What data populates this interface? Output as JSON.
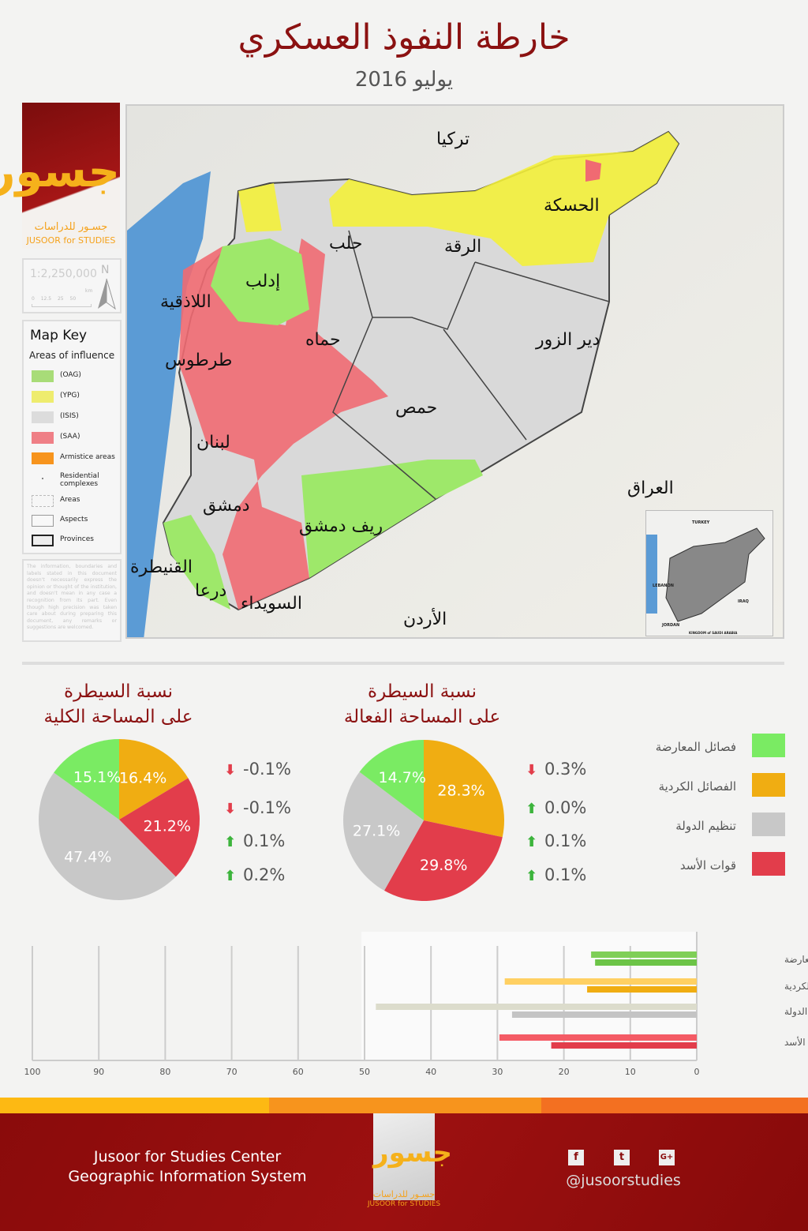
{
  "header": {
    "title": "خارطة النفوذ العسكري",
    "date": "يوليو  2016"
  },
  "logo": {
    "glyph": "جسور",
    "arabic": "جسـور للدراسات",
    "english": "JUSOOR for STUDIES"
  },
  "scale": {
    "ratio": "1:2,250,000",
    "north": "N",
    "ticks": "0 12.5 25 50",
    "unit": "km"
  },
  "map_key": {
    "title": "Map Key",
    "subtitle": "Areas of influence",
    "items": [
      {
        "label": "(OAG)",
        "color": "#a8dc78"
      },
      {
        "label": "(YPG)",
        "color": "#eeec6e"
      },
      {
        "label": "(ISIS)",
        "color": "#dcdcdc"
      },
      {
        "label": "(SAA)",
        "color": "#ef7f86"
      },
      {
        "label": "Armistice areas",
        "color": "#f7941d"
      },
      {
        "label": "Residential complexes",
        "color": ""
      },
      {
        "label": "Areas",
        "color": ""
      },
      {
        "label": "Aspects",
        "color": ""
      },
      {
        "label": "Provinces",
        "color": ""
      }
    ]
  },
  "disclaimer": "The information, boundaries and labels stated in this document doesn't necessarily express the opinion or thought of the institution, and doesn't mean in any case a recognition from its part. Even though high precision was taken care about during preparing this document, any remarks or suggestions are welcomed.",
  "map": {
    "labels": {
      "turkey": "تركيا",
      "hasakah": "الحسكة",
      "aleppo": "حلب",
      "raqqa": "الرقة",
      "idlib": "إدلب",
      "latakia": "اللاذقية",
      "hama": "حماه",
      "deir": "دير الزور",
      "tartus": "طرطوس",
      "homs": "حمص",
      "lebanon": "لبنان",
      "iraq": "العراق",
      "damascus": "دمشق",
      "rifdamascus": "ريف دمشق",
      "quneitra": "القنيطرة",
      "daraa": "درعا",
      "sweida": "السويداء",
      "jordan": "الأردن"
    },
    "inset": {
      "turkey": "TURKEY",
      "lebanon": "LEBANON",
      "iraq": "IRAQ",
      "jordan": "JORDAN",
      "saudi": "KINGDOM of SAUDI ARABIA"
    }
  },
  "colors": {
    "opposition": "#7aeb63",
    "kurdish": "#f0ad12",
    "isis": "#c8c8c8",
    "regime": "#e23d4b",
    "accent": "#8b1111"
  },
  "legend": [
    {
      "label": "فصائل المعارضة",
      "color": "#7aeb63"
    },
    {
      "label": "الفصائل الكردية",
      "color": "#f0ad12"
    },
    {
      "label": "تنظيم الدولة",
      "color": "#c8c8c8"
    },
    {
      "label": "قوات الأسد",
      "color": "#e23d4b"
    }
  ],
  "chart_data": [
    {
      "type": "pie",
      "title": "نسبة السيطرة على المساحة الكلية",
      "title_l1": "نسبة السيطرة",
      "title_l2": "على المساحة الكلية",
      "categories": [
        "الفصائل الكردية",
        "قوات الأسد",
        "تنظيم الدولة",
        "فصائل المعارضة"
      ],
      "values": [
        16.4,
        21.2,
        47.4,
        15.1
      ],
      "labels": [
        "16.4%",
        "21.2%",
        "47.4%",
        "15.1%"
      ],
      "colors": [
        "#f0ad12",
        "#e23d4b",
        "#c8c8c8",
        "#7aeb63"
      ],
      "changes": [
        {
          "value": "-0.1%",
          "dir": "down"
        },
        {
          "value": "-0.1%",
          "dir": "down"
        },
        {
          "value": "0.1%",
          "dir": "up"
        },
        {
          "value": "0.2%",
          "dir": "up"
        }
      ]
    },
    {
      "type": "pie",
      "title": "نسبة السيطرة على المساحة الفعالة",
      "title_l1": "نسبة السيطرة",
      "title_l2": "على المساحة الفعالة",
      "categories": [
        "الفصائل الكردية",
        "قوات الأسد",
        "تنظيم الدولة",
        "فصائل المعارضة"
      ],
      "values": [
        28.3,
        29.8,
        27.1,
        14.7
      ],
      "labels": [
        "28.3%",
        "29.8%",
        "27.1%",
        "14.7%"
      ],
      "colors": [
        "#f0ad12",
        "#e23d4b",
        "#c8c8c8",
        "#7aeb63"
      ],
      "changes": [
        {
          "value": "0.3%",
          "dir": "down"
        },
        {
          "value": "0.0%",
          "dir": "up"
        },
        {
          "value": "0.1%",
          "dir": "up"
        },
        {
          "value": "0.1%",
          "dir": "up"
        }
      ]
    },
    {
      "type": "bar",
      "orientation": "horizontal",
      "xlim": [
        0,
        100
      ],
      "x_reversed": true,
      "grid": true,
      "ticks": [
        "100",
        "90",
        "80",
        "70",
        "60",
        "50",
        "40",
        "30",
        "20",
        "10",
        "0"
      ],
      "categories": [
        "فصائل المعارضة",
        "الفصائل الكردية",
        "تنظيم الدولة",
        "قوات الأسد"
      ],
      "series": [
        {
          "values": [
            15.9,
            28.9,
            48.3,
            29.7
          ],
          "colors": [
            "#7fcf57",
            "#ffd062",
            "#dcdccc",
            "#f45b65"
          ]
        },
        {
          "values": [
            15.3,
            16.5,
            27.8,
            21.9
          ],
          "colors": [
            "#6cc447",
            "#f0ad12",
            "#c4c4c4",
            "#e23d4b"
          ]
        }
      ]
    }
  ],
  "footer": {
    "line1": "Jusoor for Studies Center",
    "line2": "Geographic Information System",
    "handle": "@jusoorstudies",
    "social": [
      "f",
      "t",
      "G+"
    ]
  }
}
